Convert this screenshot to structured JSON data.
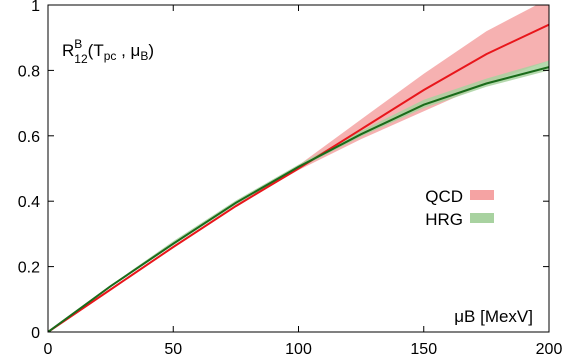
{
  "chart_data": {
    "type": "line",
    "title": "",
    "xlabel": "μB [MexV]",
    "ylabel": "",
    "annotation": {
      "main": "R",
      "sup": "B",
      "sub": "12",
      "args": "(T",
      "args_sub1": "pc",
      "sep": " , μ",
      "args_sub2": "B",
      "close": ")"
    },
    "xlim": [
      0,
      200
    ],
    "ylim": [
      0,
      1
    ],
    "xticks": [
      0,
      50,
      100,
      150,
      200
    ],
    "yticks": [
      0,
      0.2,
      0.4,
      0.6,
      0.8,
      1
    ],
    "ytick_labels": [
      "0",
      "0.2",
      "0.4",
      "0.6",
      "0.8",
      "1"
    ],
    "legend": {
      "placement": "center-right",
      "entries": [
        {
          "name": "QCD",
          "color": "#f5a3a3"
        },
        {
          "name": "HRG",
          "color": "#a8d2a0"
        }
      ]
    },
    "series": [
      {
        "name": "QCD",
        "line_color": "#e8161b",
        "band_color": "#f5a3a3",
        "x": [
          0,
          25,
          50,
          75,
          100,
          125,
          150,
          175,
          200
        ],
        "y": [
          0,
          0.13,
          0.26,
          0.385,
          0.5,
          0.62,
          0.74,
          0.85,
          0.94
        ],
        "y_low": [
          0,
          0.13,
          0.26,
          0.385,
          0.495,
          0.59,
          0.675,
          0.76,
          0.83
        ],
        "y_high": [
          0,
          0.13,
          0.262,
          0.39,
          0.51,
          0.65,
          0.79,
          0.92,
          1.02
        ]
      },
      {
        "name": "HRG",
        "line_color": "#1a6b1a",
        "band_color": "#a8d2a0",
        "x": [
          0,
          25,
          50,
          75,
          100,
          125,
          150,
          175,
          200
        ],
        "y": [
          0,
          0.14,
          0.27,
          0.395,
          0.505,
          0.605,
          0.695,
          0.76,
          0.81
        ],
        "y_low": [
          0,
          0.137,
          0.265,
          0.39,
          0.5,
          0.598,
          0.685,
          0.75,
          0.8
        ],
        "y_high": [
          0,
          0.143,
          0.278,
          0.402,
          0.512,
          0.615,
          0.71,
          0.775,
          0.83
        ]
      }
    ]
  }
}
